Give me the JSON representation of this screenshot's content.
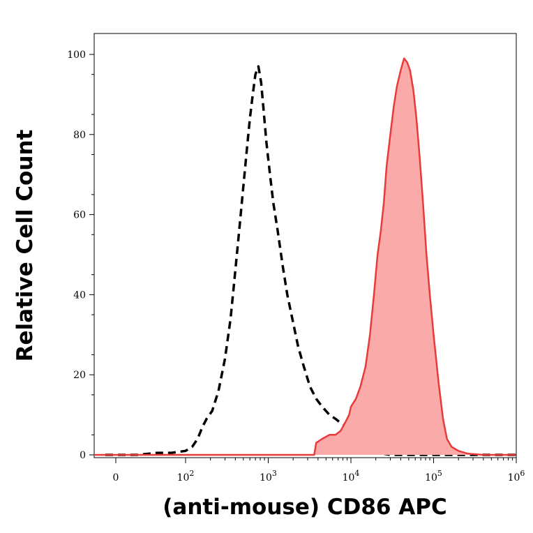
{
  "chart_data": {
    "type": "area",
    "xlabel": "(anti-mouse) CD86 APC",
    "ylabel": "Relative Cell Count",
    "x_scale": "biexponential",
    "xlim": [
      -300,
      1300000
    ],
    "ylim": [
      0,
      100
    ],
    "x_ticks": [
      {
        "value": 0,
        "label": "0",
        "exp": ""
      },
      {
        "value": 100,
        "label": "10",
        "exp": "2"
      },
      {
        "value": 1000,
        "label": "10",
        "exp": "3"
      },
      {
        "value": 10000,
        "label": "10",
        "exp": "4"
      },
      {
        "value": 100000,
        "label": "10",
        "exp": "5"
      },
      {
        "value": 1000000,
        "label": "10",
        "exp": "6"
      }
    ],
    "y_ticks": [
      {
        "value": 0,
        "label": "0"
      },
      {
        "value": 20,
        "label": "20"
      },
      {
        "value": 40,
        "label": "40"
      },
      {
        "value": 60,
        "label": "60"
      },
      {
        "value": 80,
        "label": "80"
      },
      {
        "value": 100,
        "label": "100"
      }
    ],
    "grid": false,
    "legend": "none",
    "series": [
      {
        "style": "dashed-line",
        "color": "#000000",
        "points": [
          [
            -150,
            0
          ],
          [
            -50,
            0
          ],
          [
            30,
            0
          ],
          [
            60,
            0.5
          ],
          [
            80,
            0.5
          ],
          [
            100,
            1
          ],
          [
            120,
            2
          ],
          [
            140,
            4
          ],
          [
            160,
            7
          ],
          [
            180,
            9
          ],
          [
            210,
            11
          ],
          [
            250,
            16
          ],
          [
            300,
            24
          ],
          [
            350,
            34
          ],
          [
            400,
            46
          ],
          [
            450,
            57
          ],
          [
            500,
            67
          ],
          [
            550,
            76
          ],
          [
            600,
            84
          ],
          [
            650,
            90
          ],
          [
            700,
            95
          ],
          [
            760,
            97
          ],
          [
            820,
            93
          ],
          [
            880,
            86
          ],
          [
            950,
            78
          ],
          [
            1050,
            70
          ],
          [
            1150,
            63
          ],
          [
            1300,
            56
          ],
          [
            1500,
            47
          ],
          [
            1700,
            40
          ],
          [
            2000,
            33
          ],
          [
            2300,
            27
          ],
          [
            2700,
            22
          ],
          [
            3200,
            17
          ],
          [
            3800,
            14
          ],
          [
            4500,
            12
          ],
          [
            5500,
            10
          ],
          [
            6500,
            9
          ],
          [
            7500,
            8
          ],
          [
            9000,
            7
          ],
          [
            10000,
            6
          ],
          [
            11000,
            5
          ],
          [
            13000,
            3
          ],
          [
            15000,
            2
          ],
          [
            18000,
            1
          ],
          [
            22000,
            0.5
          ],
          [
            30000,
            0
          ],
          [
            200000,
            0
          ],
          [
            1300000,
            0
          ]
        ]
      },
      {
        "style": "filled-area",
        "color": "#e83a3a",
        "fill": "#fbaaaa",
        "points": [
          [
            -300,
            0
          ],
          [
            2000,
            0
          ],
          [
            3600,
            0
          ],
          [
            3800,
            3
          ],
          [
            4500,
            4
          ],
          [
            5500,
            5
          ],
          [
            6500,
            5
          ],
          [
            7500,
            6
          ],
          [
            8500,
            8
          ],
          [
            9500,
            10
          ],
          [
            10000,
            12
          ],
          [
            11500,
            14
          ],
          [
            13000,
            17
          ],
          [
            15000,
            22
          ],
          [
            17000,
            30
          ],
          [
            19000,
            40
          ],
          [
            21000,
            50
          ],
          [
            23000,
            56
          ],
          [
            25000,
            63
          ],
          [
            27000,
            72
          ],
          [
            30000,
            80
          ],
          [
            33000,
            87
          ],
          [
            36000,
            92
          ],
          [
            40000,
            96
          ],
          [
            44000,
            99
          ],
          [
            48000,
            98
          ],
          [
            52000,
            96
          ],
          [
            57000,
            91
          ],
          [
            62000,
            84
          ],
          [
            68000,
            74
          ],
          [
            75000,
            62
          ],
          [
            82000,
            50
          ],
          [
            90000,
            40
          ],
          [
            100000,
            30
          ],
          [
            115000,
            18
          ],
          [
            130000,
            9
          ],
          [
            145000,
            4
          ],
          [
            165000,
            2
          ],
          [
            200000,
            1
          ],
          [
            260000,
            0.3
          ],
          [
            400000,
            0
          ],
          [
            1300000,
            0
          ]
        ]
      }
    ]
  }
}
